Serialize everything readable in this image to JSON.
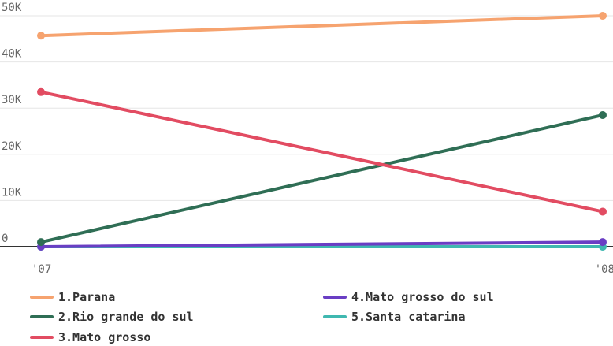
{
  "chart_data": {
    "type": "line",
    "x": [
      "'07",
      "'08"
    ],
    "ylim": [
      0,
      50000
    ],
    "yticks": [
      0,
      10000,
      20000,
      30000,
      40000,
      50000
    ],
    "ytick_labels": [
      "0",
      "10K",
      "20K",
      "30K",
      "40K",
      "50K"
    ],
    "grid": true,
    "legend_position": "bottom",
    "series": [
      {
        "name": "1.Parana",
        "values": [
          45700,
          50000
        ],
        "color": "#f6a36f"
      },
      {
        "name": "2.Rio grande do sul",
        "values": [
          1000,
          28500
        ],
        "color": "#2f6e55"
      },
      {
        "name": "3.Mato grosso",
        "values": [
          33500,
          7600
        ],
        "color": "#e24c62"
      },
      {
        "name": "4.Mato grosso do sul",
        "values": [
          0,
          1000
        ],
        "color": "#6a3ec4"
      },
      {
        "name": "5.Santa catarina",
        "values": [
          0,
          0
        ],
        "color": "#3fb8b0"
      }
    ]
  }
}
